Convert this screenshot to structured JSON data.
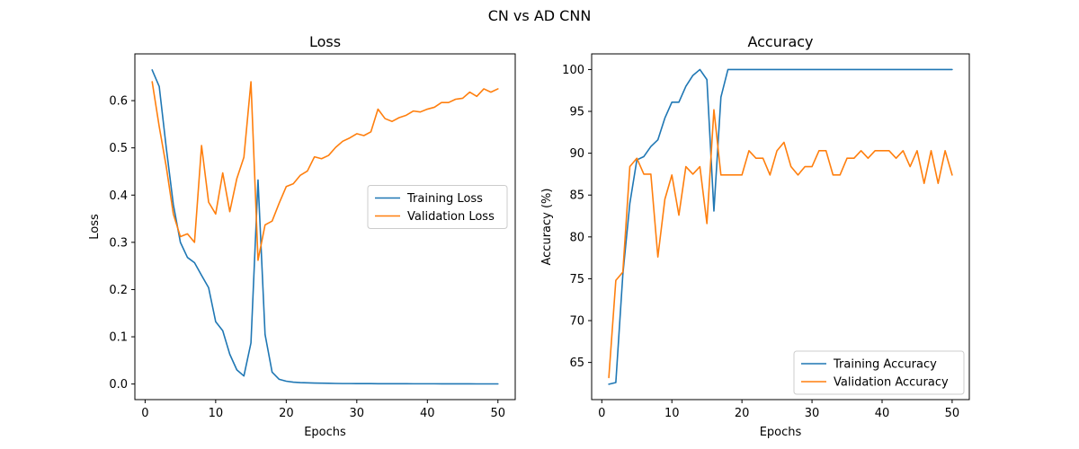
{
  "figure": {
    "suptitle": "CN vs AD CNN"
  },
  "colors": {
    "training": "#1f77b4",
    "validation": "#ff7f0e"
  },
  "chart_data": [
    {
      "type": "line",
      "title": "Loss",
      "xlabel": "Epochs",
      "ylabel": "Loss",
      "xlim": [
        -1.45,
        52.45
      ],
      "ylim": [
        -0.033,
        0.699
      ],
      "xticks": [
        0,
        10,
        20,
        30,
        40,
        50
      ],
      "yticks": [
        0.0,
        0.1,
        0.2,
        0.3,
        0.4,
        0.5,
        0.6
      ],
      "ytick_decimals": 1,
      "legend": "center-right",
      "x": [
        1,
        2,
        3,
        4,
        5,
        6,
        7,
        8,
        9,
        10,
        11,
        12,
        13,
        14,
        15,
        16,
        17,
        18,
        19,
        20,
        21,
        22,
        23,
        24,
        25,
        26,
        27,
        28,
        29,
        30,
        31,
        32,
        33,
        34,
        35,
        36,
        37,
        38,
        39,
        40,
        41,
        42,
        43,
        44,
        45,
        46,
        47,
        48,
        49,
        50
      ],
      "series": [
        {
          "name": "Training Loss",
          "color": "#1f77b4",
          "values": [
            0.665,
            0.63,
            0.5,
            0.38,
            0.3,
            0.268,
            0.257,
            0.23,
            0.204,
            0.132,
            0.113,
            0.063,
            0.03,
            0.017,
            0.087,
            0.432,
            0.105,
            0.025,
            0.01,
            0.006,
            0.004,
            0.003,
            0.0025,
            0.002,
            0.0018,
            0.0015,
            0.0012,
            0.001,
            0.001,
            0.0009,
            0.0008,
            0.0008,
            0.0007,
            0.0007,
            0.0006,
            0.0006,
            0.0006,
            0.0005,
            0.0005,
            0.0005,
            0.0005,
            0.0004,
            0.0004,
            0.0004,
            0.0004,
            0.0004,
            0.0003,
            0.0003,
            0.0003,
            0.0003
          ]
        },
        {
          "name": "Validation Loss",
          "color": "#ff7f0e",
          "values": [
            0.64,
            0.545,
            0.46,
            0.36,
            0.312,
            0.318,
            0.3,
            0.505,
            0.385,
            0.36,
            0.447,
            0.365,
            0.435,
            0.48,
            0.64,
            0.262,
            0.337,
            0.345,
            0.383,
            0.418,
            0.424,
            0.442,
            0.451,
            0.481,
            0.477,
            0.484,
            0.501,
            0.514,
            0.521,
            0.53,
            0.526,
            0.534,
            0.582,
            0.562,
            0.556,
            0.564,
            0.569,
            0.578,
            0.576,
            0.582,
            0.586,
            0.596,
            0.596,
            0.603,
            0.605,
            0.618,
            0.609,
            0.625,
            0.618,
            0.625
          ]
        }
      ]
    },
    {
      "type": "line",
      "title": "Accuracy",
      "xlabel": "Epochs",
      "ylabel": "Accuracy (%)",
      "xlim": [
        -1.45,
        52.45
      ],
      "ylim": [
        60.56,
        101.87
      ],
      "xticks": [
        0,
        10,
        20,
        30,
        40,
        50
      ],
      "yticks": [
        65,
        70,
        75,
        80,
        85,
        90,
        95,
        100
      ],
      "ytick_decimals": 0,
      "legend": "lower-right",
      "x": [
        1,
        2,
        3,
        4,
        5,
        6,
        7,
        8,
        9,
        10,
        11,
        12,
        13,
        14,
        15,
        16,
        17,
        18,
        19,
        20,
        21,
        22,
        23,
        24,
        25,
        26,
        27,
        28,
        29,
        30,
        31,
        32,
        33,
        34,
        35,
        36,
        37,
        38,
        39,
        40,
        41,
        42,
        43,
        44,
        45,
        46,
        47,
        48,
        49,
        50
      ],
      "series": [
        {
          "name": "Training Accuracy",
          "color": "#1f77b4",
          "values": [
            62.4,
            62.6,
            75.5,
            84.0,
            89.2,
            89.6,
            90.8,
            91.6,
            94.2,
            96.1,
            96.1,
            98.0,
            99.3,
            100.0,
            98.8,
            83.1,
            96.7,
            100.0,
            100.0,
            100.0,
            100.0,
            100.0,
            100.0,
            100.0,
            100.0,
            100.0,
            100.0,
            100.0,
            100.0,
            100.0,
            100.0,
            100.0,
            100.0,
            100.0,
            100.0,
            100.0,
            100.0,
            100.0,
            100.0,
            100.0,
            100.0,
            100.0,
            100.0,
            100.0,
            100.0,
            100.0,
            100.0,
            100.0,
            100.0,
            100.0
          ]
        },
        {
          "name": "Validation Accuracy",
          "color": "#ff7f0e",
          "values": [
            63.2,
            74.8,
            75.8,
            88.4,
            89.4,
            87.5,
            87.5,
            77.6,
            84.5,
            87.4,
            82.6,
            88.4,
            87.5,
            88.4,
            81.6,
            95.2,
            87.4,
            87.4,
            87.4,
            87.4,
            90.3,
            89.4,
            89.4,
            87.4,
            90.3,
            91.3,
            88.4,
            87.4,
            88.4,
            88.4,
            90.3,
            90.3,
            87.4,
            87.4,
            89.4,
            89.4,
            90.3,
            89.4,
            90.3,
            90.3,
            90.3,
            89.4,
            90.3,
            88.4,
            90.3,
            86.4,
            90.3,
            86.4,
            90.3,
            87.4
          ]
        }
      ]
    }
  ]
}
